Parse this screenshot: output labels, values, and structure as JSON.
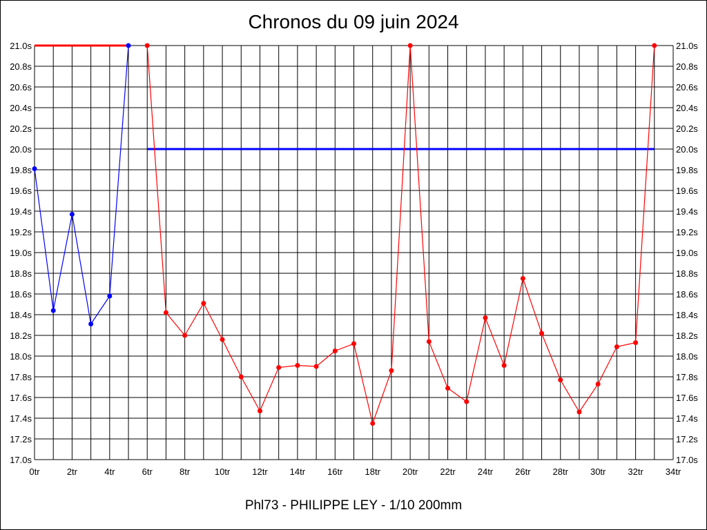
{
  "chart_data": {
    "type": "line",
    "title": "Chronos du 09 juin 2024",
    "subtitle": "Phl73 - PHILIPPE LEY - 1/10 200mm",
    "x_ticks": [
      "0tr",
      "2tr",
      "4tr",
      "6tr",
      "8tr",
      "10tr",
      "12tr",
      "14tr",
      "16tr",
      "18tr",
      "20tr",
      "22tr",
      "24tr",
      "26tr",
      "28tr",
      "30tr",
      "32tr",
      "34tr"
    ],
    "y_ticks": [
      "17.0s",
      "17.2s",
      "17.4s",
      "17.6s",
      "17.8s",
      "18.0s",
      "18.2s",
      "18.4s",
      "18.6s",
      "18.8s",
      "19.0s",
      "19.2s",
      "19.4s",
      "19.6s",
      "19.8s",
      "20.0s",
      "20.2s",
      "20.4s",
      "20.6s",
      "20.8s",
      "21.0s"
    ],
    "xlim": [
      0,
      34
    ],
    "ylim": [
      17.0,
      21.0
    ],
    "grid": true,
    "series": [
      {
        "color": "#0000ff",
        "x": [
          0,
          1,
          2,
          3,
          4,
          5
        ],
        "y": [
          19.81,
          18.44,
          19.37,
          18.31,
          18.58,
          21.0
        ]
      },
      {
        "color": "#ff0000",
        "x": [
          6,
          7,
          8,
          9,
          10,
          11,
          12,
          13,
          14,
          15,
          16,
          17,
          18,
          19,
          20,
          21,
          22,
          23,
          24,
          25,
          26,
          27,
          28,
          29,
          30,
          31,
          32,
          33
        ],
        "y": [
          21.0,
          18.42,
          18.2,
          18.51,
          18.16,
          17.8,
          17.47,
          17.89,
          17.91,
          17.9,
          18.05,
          18.12,
          17.35,
          17.86,
          21.0,
          18.14,
          17.69,
          17.56,
          18.37,
          17.91,
          18.75,
          18.22,
          17.77,
          17.46,
          17.73,
          18.09,
          18.13,
          21.0
        ]
      }
    ],
    "reference_lines": [
      {
        "color": "#ff0000",
        "y": 21.0,
        "x_start": 0,
        "x_end": 5
      },
      {
        "color": "#0000ff",
        "y": 20.0,
        "x_start": 6,
        "x_end": 33
      }
    ]
  }
}
